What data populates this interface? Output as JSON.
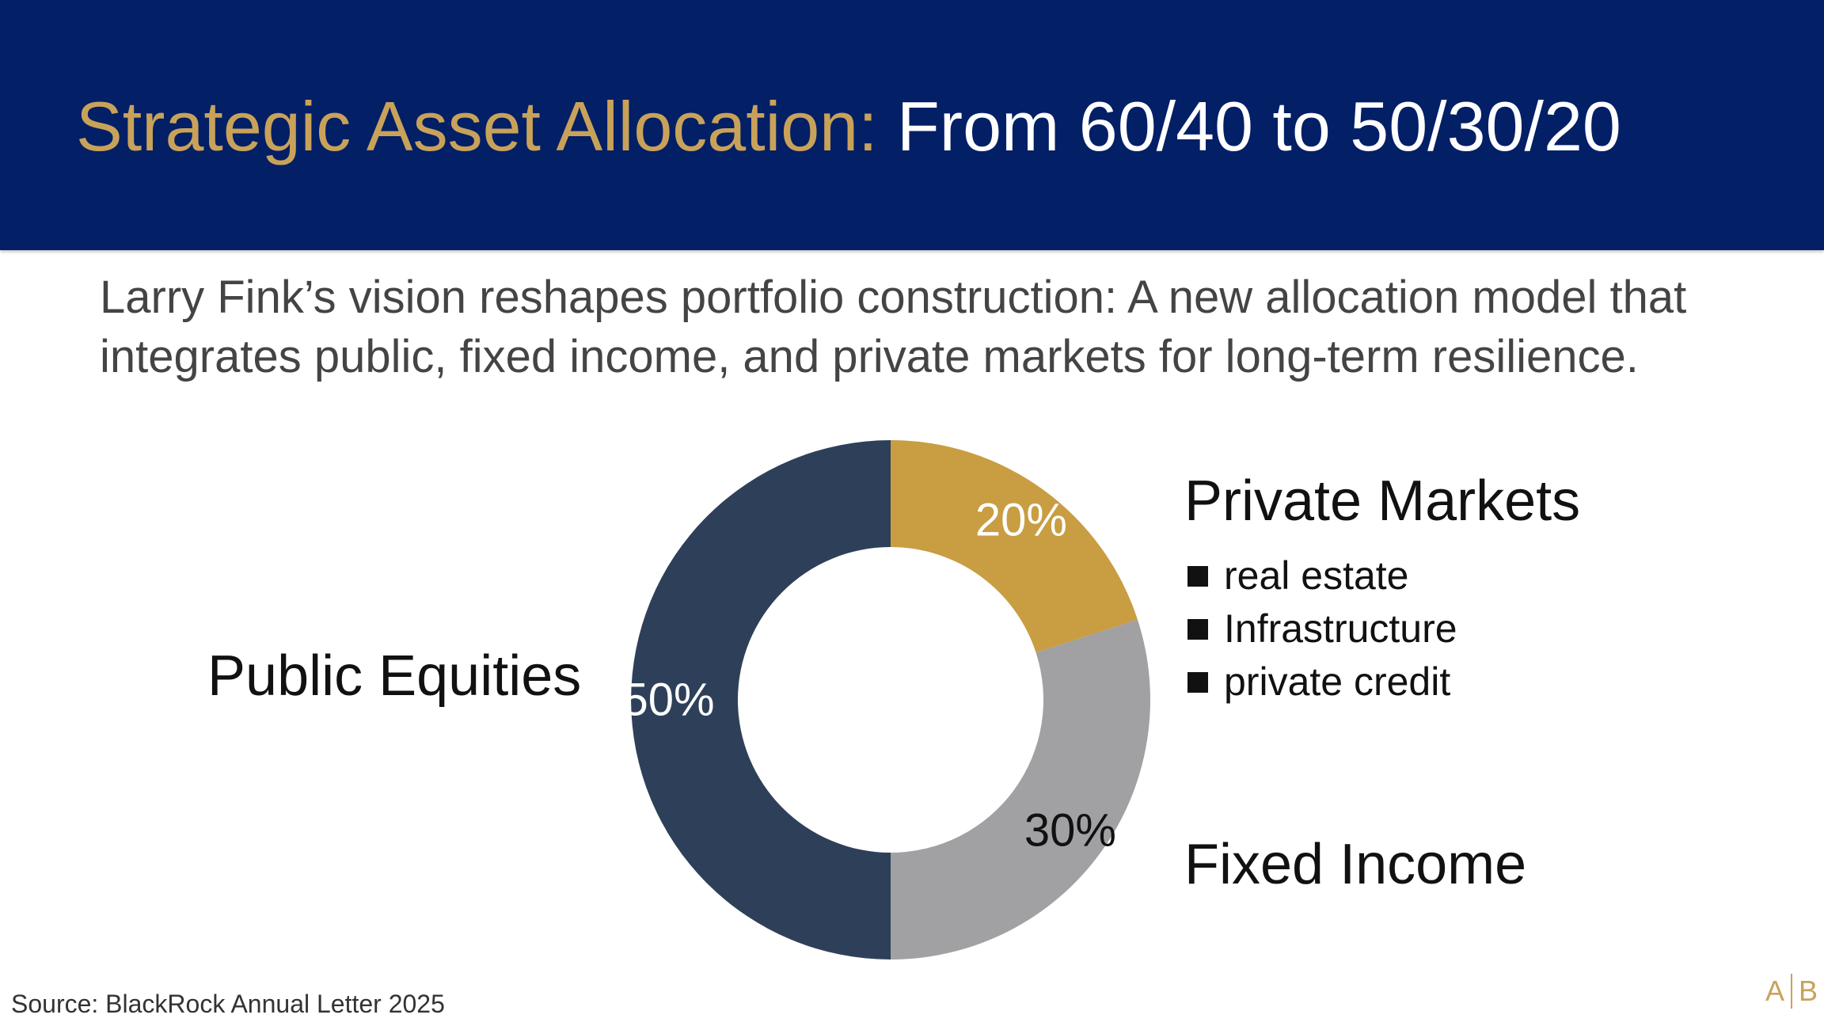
{
  "header": {
    "title_accent": "Strategic Asset Allocation:",
    "title_main": "From 60/40 to 50/30/20"
  },
  "subtitle": "Larry Fink’s vision reshapes portfolio construction: A new allocation model that integrates public, fixed income, and private markets for long-term resilience.",
  "chart_data": {
    "type": "pie",
    "donut": true,
    "categories": [
      "Private Markets",
      "Fixed Income",
      "Public Equities"
    ],
    "values": [
      20,
      30,
      50
    ],
    "value_labels": [
      "20%",
      "30%",
      "50%"
    ],
    "colors": [
      "#c99d41",
      "#a1a0a3",
      "#2e4059"
    ],
    "label_colors": [
      "#ffffff",
      "#111111",
      "#ffffff"
    ],
    "title": "",
    "legend": "none"
  },
  "category_labels": {
    "public_equities": "Public Equities",
    "private_markets": "Private Markets",
    "fixed_income": "Fixed Income"
  },
  "private_markets_items": [
    "real estate",
    "Infrastructure",
    "private credit"
  ],
  "source": "Source: BlackRock Annual Letter 2025",
  "logo": {
    "left": "A",
    "right": "B"
  }
}
